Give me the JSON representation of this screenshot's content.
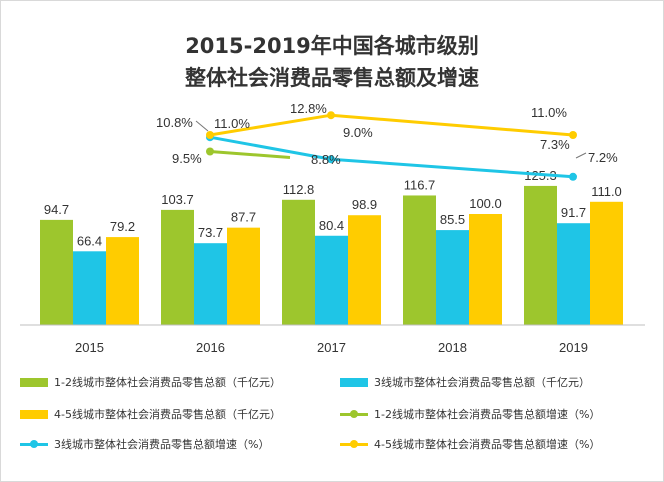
{
  "title_line1": "2015-2019年中国各城市级别",
  "title_line2": "整体社会消费品零售总额及增速",
  "colors": {
    "green": "#9dc62d",
    "blue": "#1fc5e6",
    "yellow": "#ffcc00"
  },
  "chart_data": {
    "type": "bar",
    "title": "2015-2019年中国各城市级别 整体社会消费品零售总额及增速",
    "categories": [
      "2015",
      "2016",
      "2017",
      "2018",
      "2019"
    ],
    "series": [
      {
        "name": "1-2线城市整体社会消费品零售总额（千亿元）",
        "type": "bar",
        "color": "#9dc62d",
        "values": [
          94.7,
          103.7,
          112.8,
          116.7,
          125.3
        ]
      },
      {
        "name": "3线城市整体社会消费品零售总额（千亿元）",
        "type": "bar",
        "color": "#1fc5e6",
        "values": [
          66.4,
          73.7,
          80.4,
          85.5,
          91.7
        ]
      },
      {
        "name": "4-5线城市整体社会消费品零售总额（千亿元）",
        "type": "bar",
        "color": "#ffcc00",
        "values": [
          79.2,
          87.7,
          98.9,
          100.0,
          111.0
        ]
      },
      {
        "name": "1-2线城市整体社会消费品零售总额增速（%）",
        "type": "line",
        "color": "#9dc62d",
        "x": [
          "2015"
        ],
        "values": [
          9.5
        ]
      },
      {
        "name": "3线城市整体社会消费品零售总额增速（%）",
        "type": "line",
        "color": "#1fc5e6",
        "x": [
          "2015",
          "2017",
          "2019"
        ],
        "values": [
          10.8,
          8.8,
          7.2
        ]
      },
      {
        "name": "4-5线城市整体社会消费品零售总额增速（%）",
        "type": "line",
        "color": "#ffcc00",
        "x": [
          "2015",
          "2017",
          "2019"
        ],
        "values": [
          11.0,
          12.8,
          11.0
        ]
      }
    ],
    "bar_labels": [
      [
        "94.7",
        "103.7",
        "112.8",
        "116.7",
        "125.3"
      ],
      [
        "66.4",
        "73.7",
        "80.4",
        "85.5",
        "91.7"
      ],
      [
        "79.2",
        "87.7",
        "98.9",
        "100.0",
        "111.0"
      ]
    ],
    "line_labels": {
      "green": [
        "9.5%"
      ],
      "blue": [
        "10.8%",
        "8.8%",
        "7.2%"
      ],
      "yellow": [
        "11.0%",
        "12.8%",
        "11.0%"
      ],
      "extra": [
        "9.0%",
        "7.3%"
      ]
    },
    "grid": false,
    "legend_position": "bottom"
  }
}
